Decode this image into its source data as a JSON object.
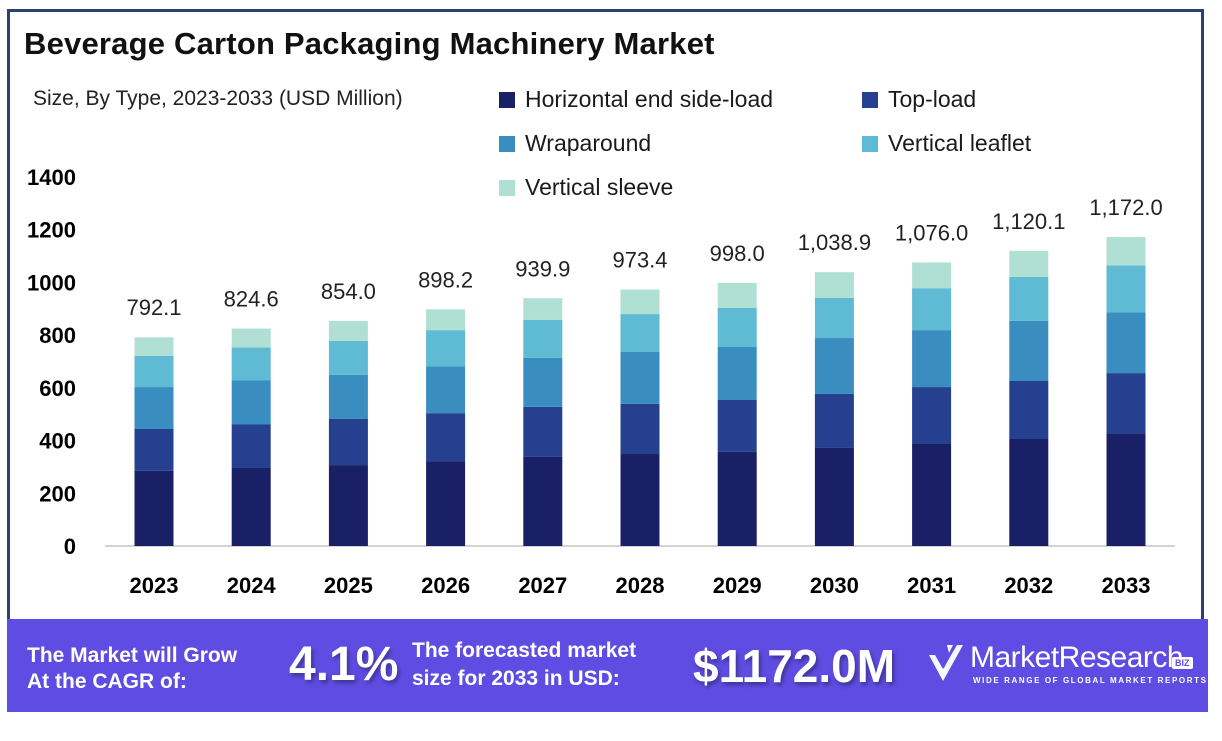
{
  "header": {
    "title": "Beverage Carton Packaging Machinery Market",
    "subtitle": "Size, By Type, 2023-2033 (USD Million)"
  },
  "chart_data": {
    "type": "bar",
    "stacked": true,
    "title": "Beverage Carton Packaging Machinery Market",
    "subtitle": "Size, By Type, 2023-2033 (USD Million)",
    "xlabel": "",
    "ylabel": "",
    "ylim": [
      0,
      1400
    ],
    "yticks": [
      0,
      200,
      400,
      600,
      800,
      1000,
      1200,
      1400
    ],
    "grid": false,
    "legend_position": "top-right",
    "categories": [
      "2023",
      "2024",
      "2025",
      "2026",
      "2027",
      "2028",
      "2029",
      "2030",
      "2031",
      "2032",
      "2033"
    ],
    "series": [
      {
        "name": "Horizontal end side-load",
        "color": "#1a2065",
        "values": [
          285,
          296,
          307,
          322,
          338,
          349,
          357,
          372,
          387,
          406,
          425
        ]
      },
      {
        "name": "Top-load",
        "color": "#25408f",
        "values": [
          159,
          165,
          175,
          182,
          190,
          190,
          197,
          205,
          216,
          220,
          231
        ]
      },
      {
        "name": "Wraparound",
        "color": "#3a8dbf",
        "values": [
          159,
          167,
          167,
          178,
          186,
          197,
          201,
          212,
          216,
          228,
          231
        ]
      },
      {
        "name": "Vertical leaflet",
        "color": "#5fbad3",
        "values": [
          118,
          125,
          129,
          137,
          144,
          144,
          148,
          152,
          159,
          167,
          178
        ]
      },
      {
        "name": "Vertical sleeve",
        "color": "#b0dfd4",
        "values": [
          71,
          72,
          76,
          79,
          82,
          93,
          95,
          98,
          98,
          99,
          107
        ]
      }
    ],
    "totals": [
      792.1,
      824.6,
      854.0,
      898.2,
      939.9,
      973.4,
      998.0,
      1038.9,
      1076.0,
      1120.1,
      1172.0
    ],
    "total_labels": [
      "792.1",
      "824.6",
      "854.0",
      "898.2",
      "939.9",
      "973.4",
      "998.0",
      "1,038.9",
      "1,076.0",
      "1,120.1",
      "1,172.0"
    ]
  },
  "footer": {
    "cagr_text": "The Market will Grow\nAt the CAGR of:",
    "cagr_value": "4.1%",
    "forecast_text": "The forecasted market\nsize for 2033 in USD:",
    "forecast_value": "$1172.0M",
    "brand_name": "MarketResearch",
    "brand_badge": "BIZ",
    "brand_tagline": "WIDE RANGE OF GLOBAL MARKET REPORTS"
  }
}
